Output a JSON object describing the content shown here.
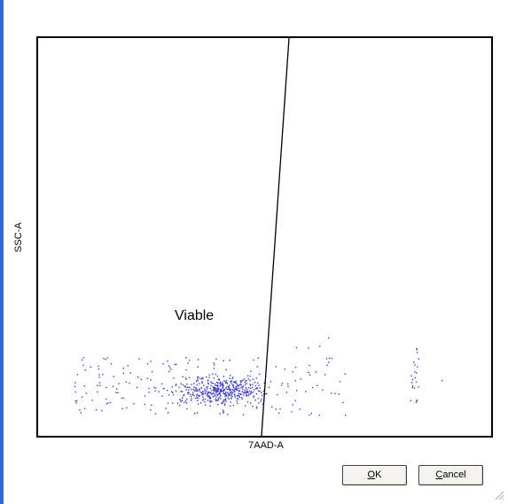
{
  "plot": {
    "y_axis_label": "SSC-A",
    "x_axis_label": "7AAD-A",
    "gate_label": "Viable"
  },
  "buttons": {
    "ok_label": "OK",
    "ok_accel": "O",
    "ok_rest": "K",
    "cancel_label": "Cancel",
    "cancel_accel": "C",
    "cancel_rest": "ancel"
  },
  "colors": {
    "window_frame": "#2d6ad9",
    "dot": "#3a3ad8"
  }
}
